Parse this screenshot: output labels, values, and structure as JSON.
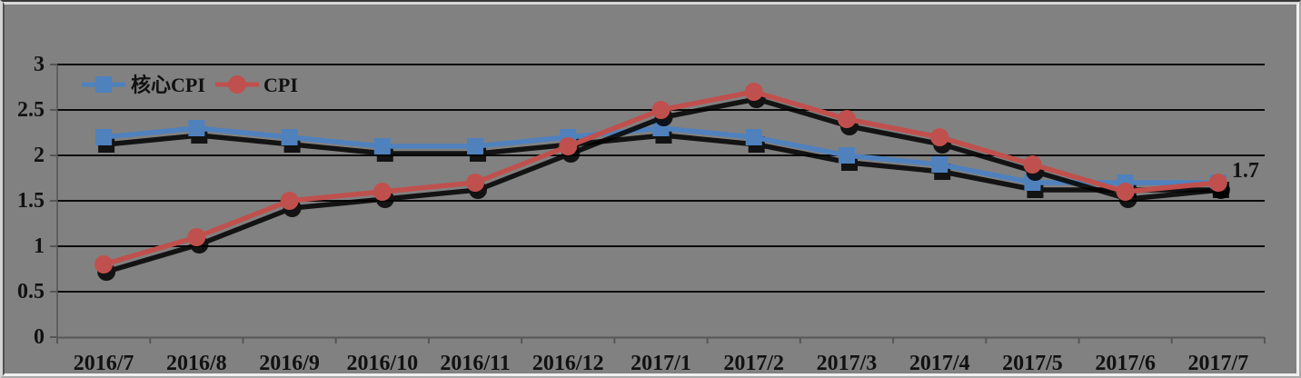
{
  "chart_data": {
    "type": "line",
    "categories": [
      "2016/7",
      "2016/8",
      "2016/9",
      "2016/10",
      "2016/11",
      "2016/12",
      "2017/1",
      "2017/2",
      "2017/3",
      "2017/4",
      "2017/5",
      "2017/6",
      "2017/7"
    ],
    "series": [
      {
        "name": "核心CPI",
        "marker": "square",
        "color": "#4f81bd",
        "values": [
          2.2,
          2.3,
          2.2,
          2.1,
          2.1,
          2.2,
          2.3,
          2.2,
          2.0,
          1.9,
          1.7,
          1.7,
          1.7
        ]
      },
      {
        "name": "CPI",
        "marker": "circle",
        "color": "#c0504d",
        "values": [
          0.8,
          1.1,
          1.5,
          1.6,
          1.7,
          2.1,
          2.5,
          2.7,
          2.4,
          2.2,
          1.9,
          1.6,
          1.7
        ]
      }
    ],
    "ylim": [
      0,
      3
    ],
    "ytick_step": 0.5,
    "ytick_labels": [
      "0",
      "0.5",
      "1",
      "1.5",
      "2",
      "2.5",
      "3"
    ],
    "grid": true,
    "legend_position": "top-left-inside",
    "last_point_label": {
      "series": "CPI",
      "category": "2017/7",
      "text": "1.7"
    },
    "colors": {
      "background": "#818181",
      "gridline": "#0a0a0a",
      "axis": "#565656",
      "shadow": "#000000",
      "text": "#111111"
    }
  }
}
